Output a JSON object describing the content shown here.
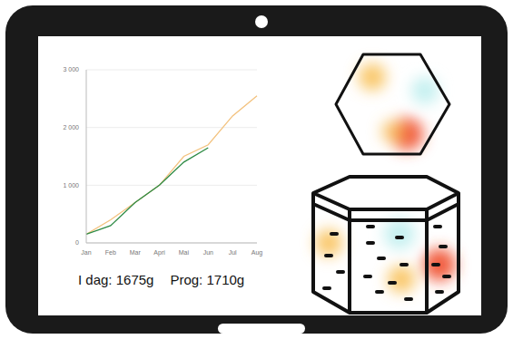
{
  "chart_data": {
    "type": "line",
    "categories": [
      "Jan",
      "Feb",
      "Mar",
      "Apri",
      "Mai",
      "Jun",
      "Jul",
      "Aug"
    ],
    "series": [
      {
        "color": "#f3c27e",
        "values": [
          150,
          400,
          700,
          1000,
          1500,
          1700,
          2200,
          2550
        ]
      },
      {
        "color": "#2e8b45",
        "values": [
          150,
          300,
          700,
          1000,
          1400,
          1650,
          null,
          null
        ]
      }
    ],
    "ylim": [
      0,
      3000
    ],
    "yticks": [
      0,
      {
        "value": 1000,
        "label": "1 000"
      },
      {
        "value": 2000,
        "label": "2 000"
      },
      {
        "value": 3000,
        "label": "3 000"
      }
    ],
    "grid": true,
    "annotations": [
      "I dag: 1675g",
      "Prog: 1710g"
    ]
  }
}
